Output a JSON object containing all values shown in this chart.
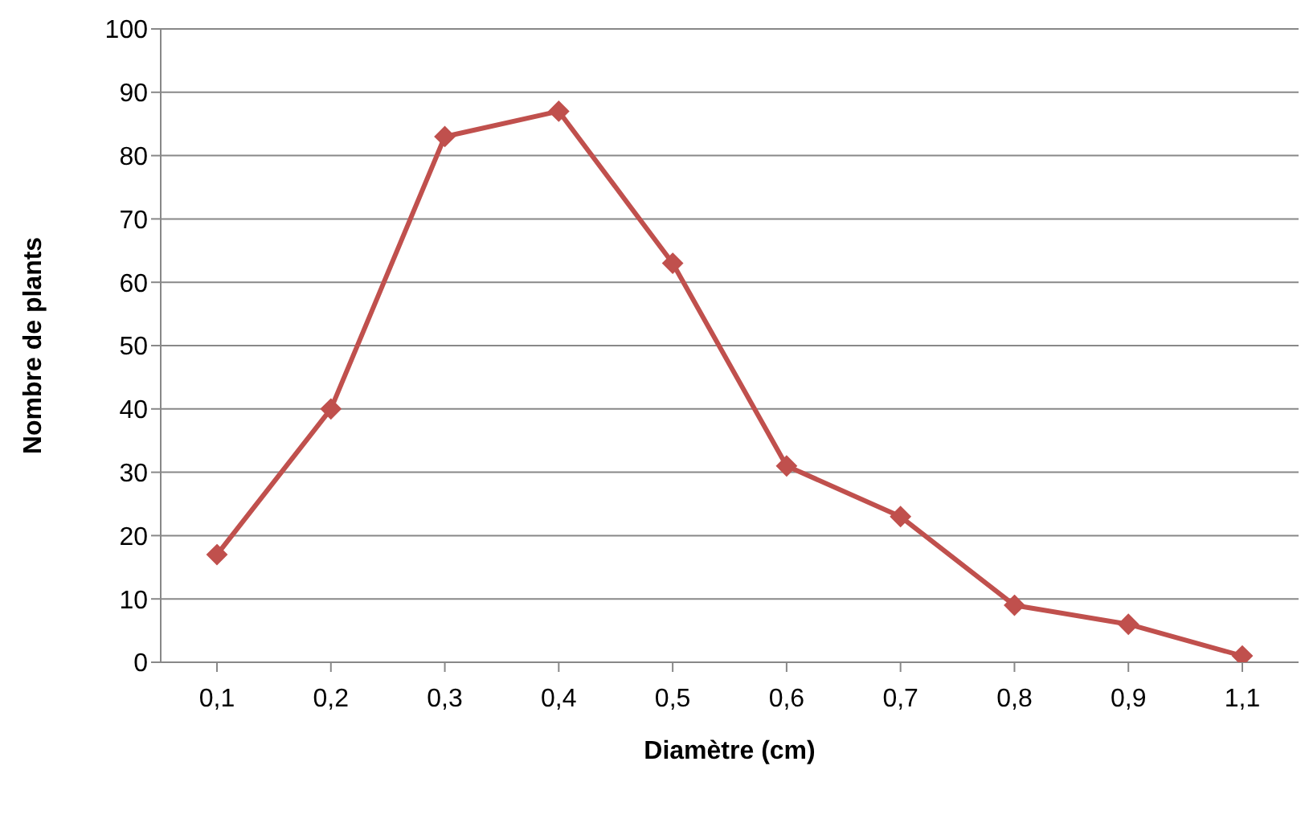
{
  "chart_data": {
    "type": "line",
    "xlabel": "Diamètre (cm)",
    "ylabel": "Nombre de plants",
    "categories": [
      "0,1",
      "0,2",
      "0,3",
      "0,4",
      "0,5",
      "0,6",
      "0,7",
      "0,8",
      "0,9",
      "1,1"
    ],
    "series": [
      {
        "color": "#c0504d",
        "values": [
          17,
          40,
          83,
          87,
          63,
          31,
          23,
          9,
          6,
          1
        ]
      }
    ],
    "ylim": [
      0,
      100
    ],
    "yticks": [
      0,
      10,
      20,
      30,
      40,
      50,
      60,
      70,
      80,
      90,
      100
    ],
    "grid": "y",
    "marker": "diamond",
    "line_style": "solid"
  }
}
